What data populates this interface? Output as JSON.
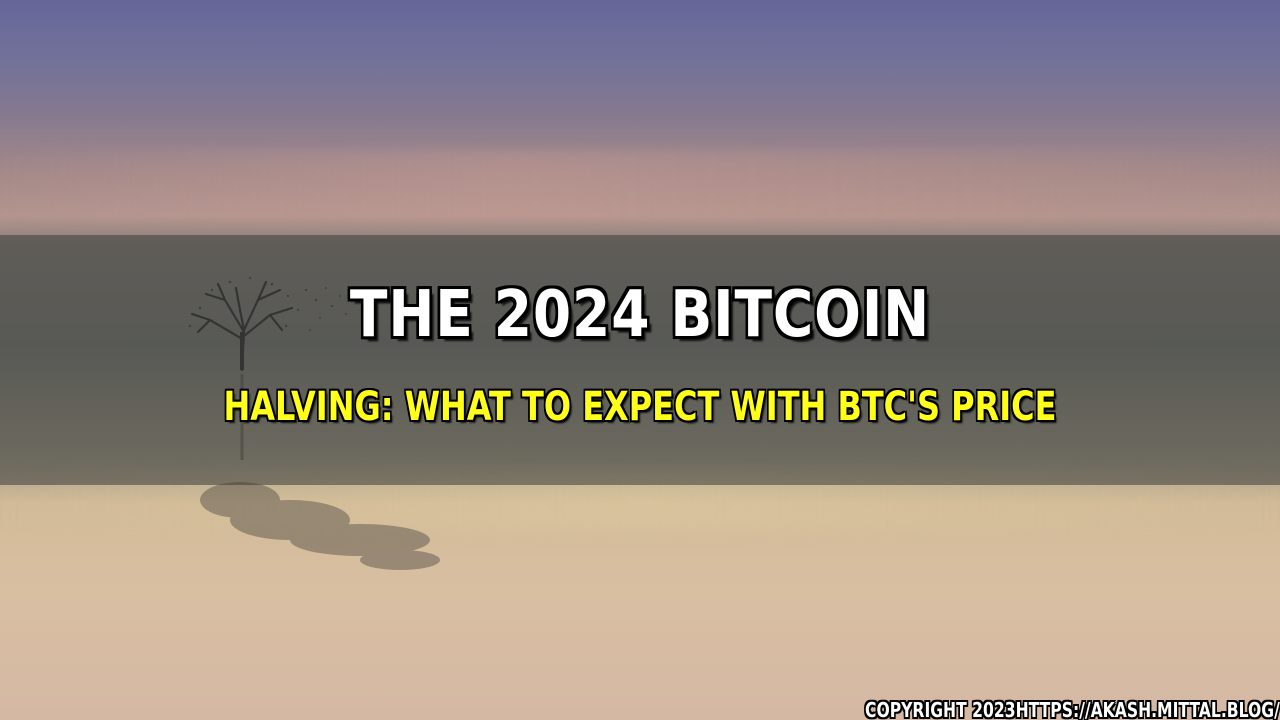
{
  "title": {
    "line1": "THE 2024 BITCOIN",
    "line2": "HALVING: WHAT TO EXPECT WITH BTC'S PRICE"
  },
  "footer": {
    "copyright": "COPYRIGHT 2023HTTPS://AKASH.MITTAL.BLOG/"
  },
  "colors": {
    "title_primary": "#ffffff",
    "title_secondary": "#ffff1a",
    "outline": "#000000"
  },
  "background": {
    "description_icon": "lone-tree-reflection-icon"
  }
}
